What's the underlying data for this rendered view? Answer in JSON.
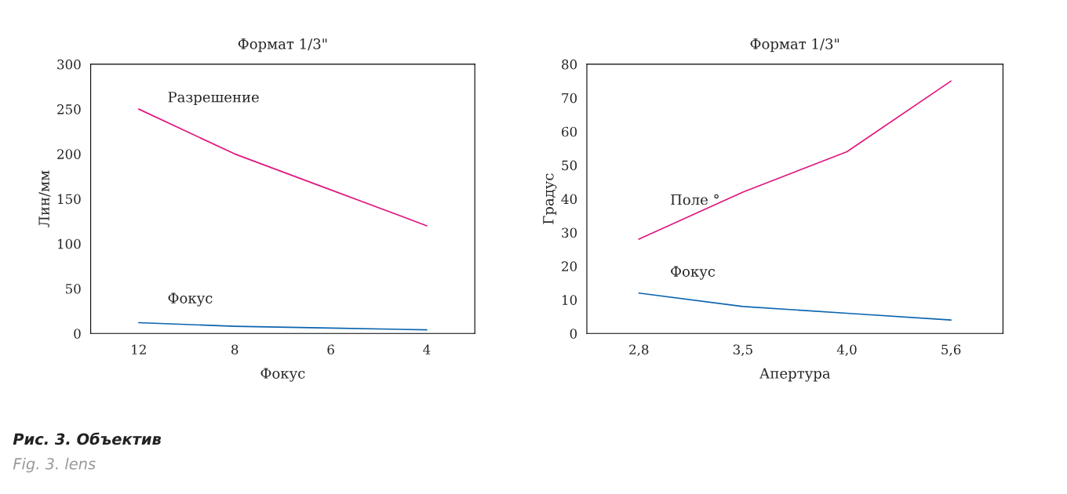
{
  "chart_data": [
    {
      "type": "line",
      "title": "Формат 1/3\"",
      "xlabel": "Фокус",
      "ylabel": "Лин/мм",
      "categories": [
        "12",
        "8",
        "6",
        "4"
      ],
      "ylim": [
        0,
        300
      ],
      "yticks": [
        0,
        50,
        100,
        150,
        200,
        250,
        300
      ],
      "grid": false,
      "legend": false,
      "series": [
        {
          "name": "Разрешение",
          "color": "#e0167f",
          "values": [
            250,
            200,
            160,
            120
          ]
        },
        {
          "name": "Фокус",
          "color": "#0a64b0",
          "values": [
            12,
            8,
            6,
            4
          ]
        }
      ],
      "annotations": [
        "Рис. 3. Объектив",
        "Fig. 3. lens"
      ]
    },
    {
      "type": "line",
      "title": "Формат 1/3\"",
      "xlabel": "Апертура",
      "ylabel": "Градус",
      "categories": [
        "2,8",
        "3,5",
        "4,0",
        "5,6"
      ],
      "ylim": [
        0,
        80
      ],
      "yticks": [
        0,
        10,
        20,
        30,
        40,
        50,
        60,
        70,
        80
      ],
      "grid": false,
      "legend": false,
      "series": [
        {
          "name": "Поле °",
          "color": "#e0167f",
          "values": [
            28,
            42,
            54,
            75
          ]
        },
        {
          "name": "Фокус",
          "color": "#0a64b0",
          "values": [
            12,
            8,
            6,
            4
          ]
        }
      ]
    }
  ]
}
